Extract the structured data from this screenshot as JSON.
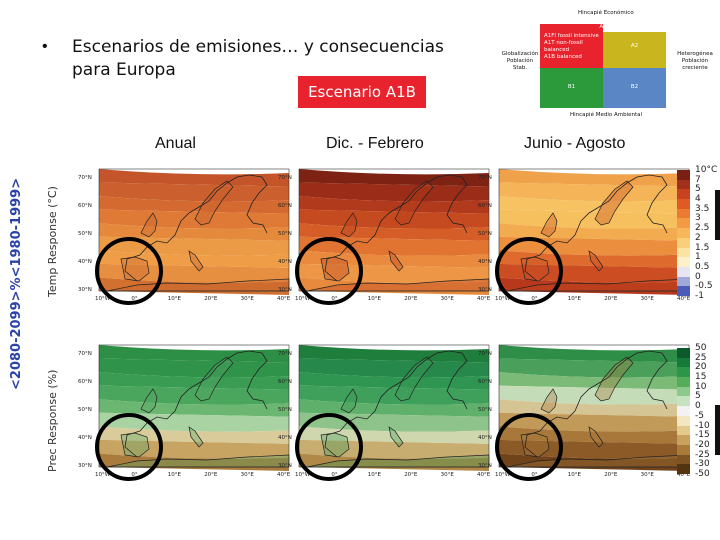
{
  "slide": {
    "bullet": "•",
    "title_line1": "Escenarios de emisiones… y consecuencias",
    "title_line2": "para Europa",
    "scenario": "Escenario A1B"
  },
  "scenario_diagram": {
    "top_label": "Hincapié Económico",
    "a1_label": "A1",
    "a1_lines": [
      "A1FI fossil intensive",
      "A1T non-fossil",
      "balanced",
      "A1B balanced"
    ],
    "a2_label": "A2",
    "b1_label": "B1",
    "b2_label": "B2",
    "left_label": [
      "Globalización",
      "Población",
      "Stab."
    ],
    "right_label": [
      "Heterogénea",
      "Población",
      "creciente"
    ],
    "bottom_label": "Hincapié Medio Ambiental",
    "colors": {
      "a1": "#e8232d",
      "a2": "#c9b51e",
      "b1": "#2c9a3a",
      "b2": "#5b86c6"
    }
  },
  "columns": [
    "Anual",
    "Dic. - Febrero",
    "Junio - Agosto"
  ],
  "row_labels": {
    "main": "<2080-2099>%<1980-1999>",
    "temp": "Temp Response (°C)",
    "prec": "Prec Response (%)"
  },
  "axes": {
    "lat": [
      "70°N",
      "60°N",
      "50°N",
      "40°N",
      "30°N"
    ],
    "lon": [
      "10°W",
      "0°",
      "10°E",
      "20°E",
      "30°E",
      "40°E"
    ]
  },
  "temp_colorbar": {
    "ticks": [
      "10°C",
      "7",
      "5",
      "4",
      "3.5",
      "3",
      "2.5",
      "2",
      "1.5",
      "1",
      "0.5",
      "0",
      "-0.5",
      "-1"
    ],
    "colors": [
      "#7a1f14",
      "#a3301c",
      "#c9421f",
      "#e05a26",
      "#ec7a33",
      "#f39a45",
      "#f7b65c",
      "#f9cf7c",
      "#fbe3a4",
      "#fdf1cb",
      "#e6e6f3",
      "#9fa9d9",
      "#4a5cb8"
    ]
  },
  "prec_colorbar": {
    "ticks": [
      "50",
      "25",
      "20",
      "15",
      "10",
      "5",
      "0",
      "-5",
      "-10",
      "-15",
      "-20",
      "-25",
      "-30",
      "-50"
    ],
    "colors": [
      "#0c5a2c",
      "#157a3a",
      "#2b9647",
      "#55ad5a",
      "#8cc98a",
      "#c5e3c0",
      "#f2f2f2",
      "#f3e6c2",
      "#e3c98e",
      "#caa05f",
      "#a97a3a",
      "#7f5424",
      "#52340f"
    ]
  },
  "maps": {
    "temp_annual": {
      "bands": [
        "#c4552b",
        "#cc5f2e",
        "#d56a31",
        "#de7a36",
        "#e58a3c",
        "#eb9a45",
        "#ef9d47",
        "#e68f40",
        "#d2702f"
      ],
      "land": "#c8612f"
    },
    "temp_djf": {
      "bands": [
        "#7e2314",
        "#9a2c18",
        "#b23a1c",
        "#c64a20",
        "#d55e28",
        "#e27432",
        "#ea8a3e",
        "#ed9645",
        "#e88a3e"
      ],
      "land": "#b8401d"
    },
    "temp_jja": {
      "bands": [
        "#f0a24a",
        "#f4b457",
        "#f7c262",
        "#f7c05f",
        "#f2ab4e",
        "#eb8f3e",
        "#de6b2d",
        "#cc4d22",
        "#b8381b"
      ],
      "land": "#c44a21"
    },
    "prec_annual": {
      "bands": [
        "#2d8f45",
        "#2f9349",
        "#3a9c52",
        "#4aa65d",
        "#6bb670",
        "#a9d3a3",
        "#d9cc9a",
        "#c8a463",
        "#a97b3c"
      ],
      "land": "#56a766"
    },
    "prec_djf": {
      "bands": [
        "#1f7e3c",
        "#26884a",
        "#2f9652",
        "#3fa05c",
        "#5fb06b",
        "#8ec48c",
        "#cfd7ae",
        "#c8ad70",
        "#b08847"
      ],
      "land": "#3d9a56"
    },
    "prec_jja": {
      "bands": [
        "#2e8d47",
        "#4aa05a",
        "#7cba78",
        "#c5dcb8",
        "#d6c594",
        "#c19a5a",
        "#a8773a",
        "#8c5a26",
        "#70431a"
      ],
      "land": "#a9793d"
    }
  }
}
